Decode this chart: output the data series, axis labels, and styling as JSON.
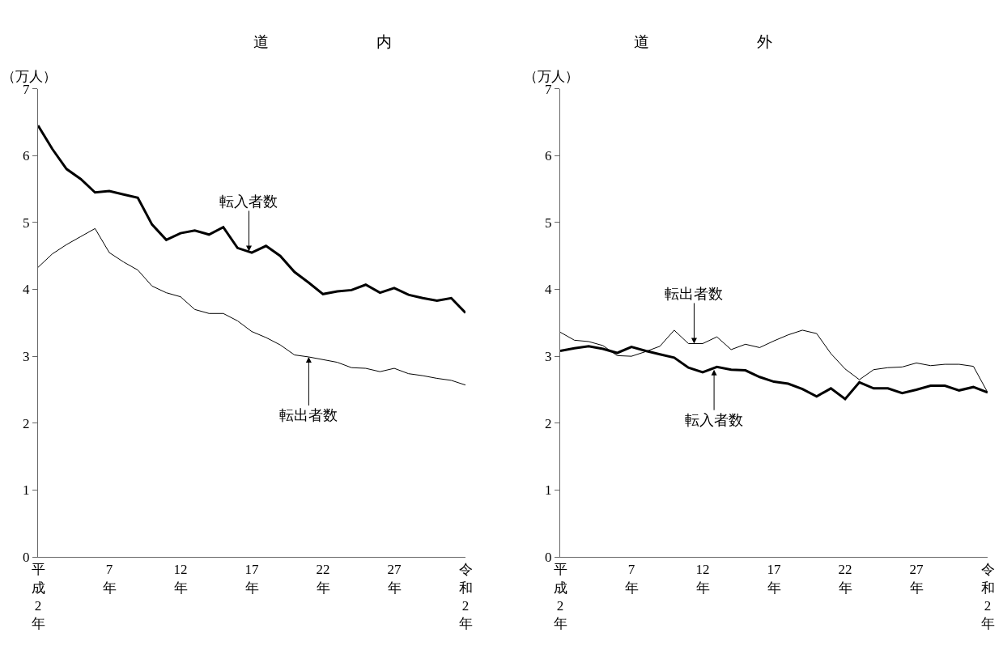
{
  "chart_data": [
    {
      "type": "line",
      "title": "道　　　　　　　内",
      "ylabel": "（万人）",
      "x": [
        2,
        3,
        4,
        5,
        6,
        7,
        8,
        9,
        10,
        11,
        12,
        13,
        14,
        15,
        16,
        17,
        18,
        19,
        20,
        21,
        22,
        23,
        24,
        25,
        26,
        27,
        28,
        29,
        30,
        31,
        32
      ],
      "series": [
        {
          "color": "#000000",
          "values": [
            6.45,
            6.1,
            5.8,
            5.65,
            5.45,
            5.47,
            5.42,
            5.37,
            4.97,
            4.74,
            4.84,
            4.88,
            4.82,
            4.93,
            4.62,
            4.55,
            4.65,
            4.5,
            4.26,
            4.1,
            3.93,
            3.97,
            3.99,
            4.07,
            3.95,
            4.02,
            3.92,
            3.87,
            3.83,
            3.87,
            3.65
          ]
        },
        {
          "color": "#000000",
          "values": [
            4.33,
            4.53,
            4.67,
            4.79,
            4.91,
            4.55,
            4.41,
            4.29,
            4.05,
            3.95,
            3.89,
            3.7,
            3.64,
            3.64,
            3.53,
            3.37,
            3.28,
            3.17,
            3.02,
            2.99,
            2.95,
            2.91,
            2.83,
            2.82,
            2.77,
            2.82,
            2.74,
            2.71,
            2.67,
            2.64,
            2.57
          ]
        }
      ],
      "annotations": [
        {
          "text": "転入者数",
          "x": 16.8,
          "y": 4.57
        },
        {
          "text": "転出者数",
          "x": 21,
          "y": 2.99
        }
      ],
      "xlim": [
        2,
        32
      ],
      "xticks": [
        {
          "value": 2,
          "label": "平成2年"
        },
        {
          "value": 7,
          "label": "7年"
        },
        {
          "value": 12,
          "label": "12年"
        },
        {
          "value": 17,
          "label": "17年"
        },
        {
          "value": 22,
          "label": "22年"
        },
        {
          "value": 27,
          "label": "27年"
        },
        {
          "value": 32,
          "label": "令和2年"
        }
      ],
      "ylim": [
        0,
        7
      ],
      "yticks": [
        0,
        1,
        2,
        3,
        4,
        5,
        6,
        7
      ],
      "marker": "none",
      "line_style": "solid"
    },
    {
      "type": "line",
      "title": "道　　　　　　　外",
      "ylabel": "（万人）",
      "x": [
        2,
        3,
        4,
        5,
        6,
        7,
        8,
        9,
        10,
        11,
        12,
        13,
        14,
        15,
        16,
        17,
        18,
        19,
        20,
        21,
        22,
        23,
        24,
        25,
        26,
        27,
        28,
        29,
        30,
        31,
        32
      ],
      "series": [
        {
          "color": "#000000",
          "values": [
            3.08,
            3.12,
            3.15,
            3.11,
            3.05,
            3.14,
            3.08,
            3.03,
            2.98,
            2.83,
            2.76,
            2.84,
            2.8,
            2.79,
            2.69,
            2.62,
            2.59,
            2.51,
            2.4,
            2.52,
            2.36,
            2.61,
            2.52,
            2.52,
            2.45,
            2.5,
            2.56,
            2.56,
            2.49,
            2.54,
            2.46
          ]
        },
        {
          "color": "#000000",
          "values": [
            3.36,
            3.24,
            3.22,
            3.16,
            3.01,
            3.0,
            3.07,
            3.15,
            3.39,
            3.19,
            3.19,
            3.29,
            3.1,
            3.18,
            3.13,
            3.23,
            3.32,
            3.39,
            3.34,
            3.04,
            2.81,
            2.65,
            2.8,
            2.83,
            2.84,
            2.9,
            2.86,
            2.88,
            2.88,
            2.85,
            2.46
          ]
        }
      ],
      "annotations": [
        {
          "text": "転出者数",
          "x": 11.4,
          "y": 3.19
        },
        {
          "text": "転入者数",
          "x": 12.8,
          "y": 2.8
        }
      ],
      "xlim": [
        2,
        32
      ],
      "xticks": [
        {
          "value": 2,
          "label": "平成2年"
        },
        {
          "value": 7,
          "label": "7年"
        },
        {
          "value": 12,
          "label": "12年"
        },
        {
          "value": 17,
          "label": "17年"
        },
        {
          "value": 22,
          "label": "22年"
        },
        {
          "value": 27,
          "label": "27年"
        },
        {
          "value": 32,
          "label": "令和2年"
        }
      ],
      "ylim": [
        0,
        7
      ],
      "yticks": [
        0,
        1,
        2,
        3,
        4,
        5,
        6,
        7
      ],
      "marker": "none",
      "line_style": "solid"
    }
  ]
}
